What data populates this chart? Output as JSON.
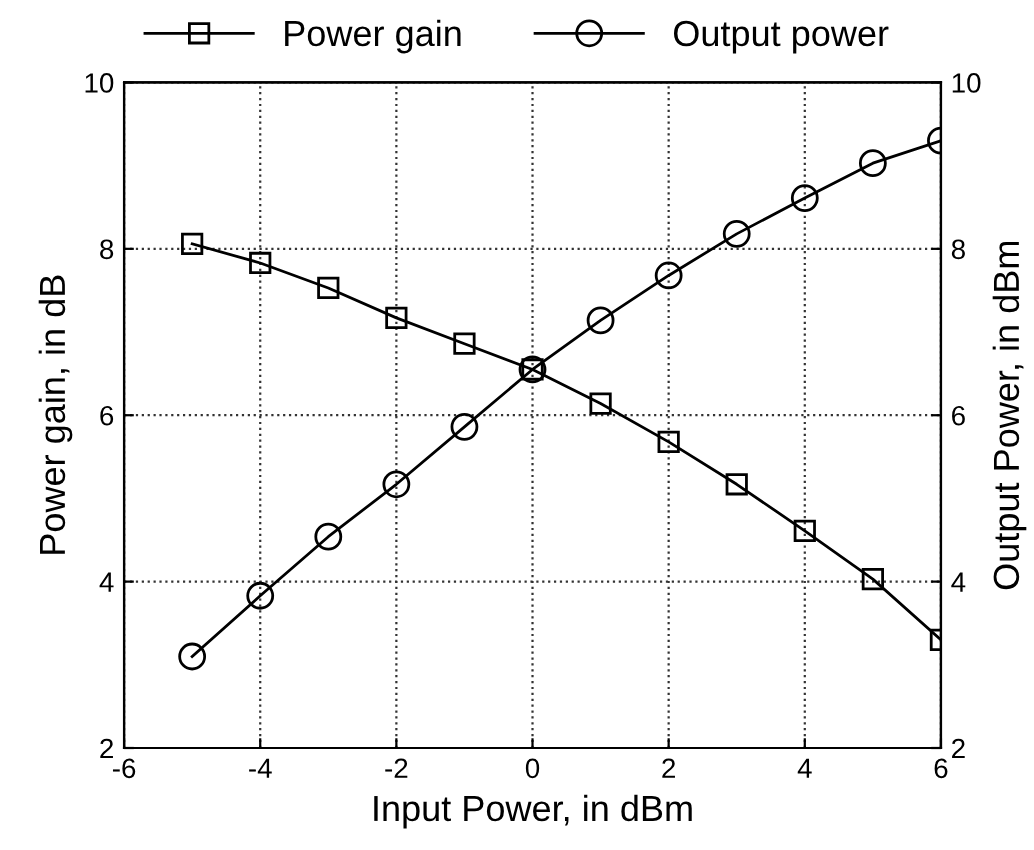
{
  "chart_data": {
    "type": "line",
    "xlabel": "Input Power, in dBm",
    "ylabel": "Power gain, in dB",
    "y2label": "Output Power, in dBm",
    "x": [
      -5,
      -4,
      -3,
      -2,
      -1,
      0,
      1,
      2,
      3,
      4,
      5,
      6
    ],
    "series": [
      {
        "name": "Power gain",
        "color": "#000000",
        "marker": "square",
        "values": [
          8.06,
          7.83,
          7.53,
          7.17,
          6.86,
          6.55,
          6.14,
          5.68,
          5.17,
          4.61,
          4.03,
          3.3
        ]
      },
      {
        "name": "Output power",
        "color": "#000000",
        "marker": "circle",
        "axis": "y2",
        "values": [
          3.1,
          3.83,
          4.54,
          5.17,
          5.86,
          6.55,
          7.14,
          7.68,
          8.18,
          8.61,
          9.03,
          9.3
        ]
      }
    ],
    "xlim": [
      -6,
      6
    ],
    "xticks": [
      -6,
      -4,
      -2,
      0,
      2,
      4,
      6
    ],
    "ylim": [
      2,
      10
    ],
    "yticks": [
      2,
      4,
      6,
      8,
      10
    ],
    "y2lim": [
      2,
      10
    ],
    "y2ticks": [
      2,
      4,
      6,
      8,
      10
    ],
    "grid": true,
    "legend": "top",
    "line_style": "solid"
  }
}
